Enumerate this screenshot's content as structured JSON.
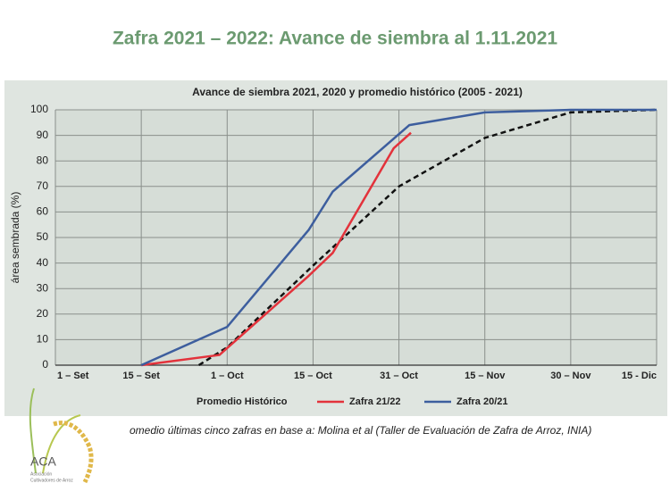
{
  "slide_title": "Zafra 2021 – 2022: Avance de siembra al 1.11.2021",
  "chart_data": {
    "type": "line",
    "title": "Avance de siembra 2021, 2020 y promedio histórico (2005 - 2021)",
    "y_label": "área sembrada (%)",
    "xlim": [
      0,
      7
    ],
    "xticks": [
      {
        "value": 0,
        "label": "1 – Set"
      },
      {
        "value": 1,
        "label": "15 – Set"
      },
      {
        "value": 2,
        "label": "1 – Oct"
      },
      {
        "value": 3,
        "label": "15 – Oct"
      },
      {
        "value": 4,
        "label": "31 – Oct"
      },
      {
        "value": 5,
        "label": "15 – Nov"
      },
      {
        "value": 6,
        "label": "30 – Nov"
      },
      {
        "value": 7,
        "label": "15 - Dic"
      }
    ],
    "ylim": [
      0,
      100
    ],
    "yticks": [
      0,
      10,
      20,
      30,
      40,
      50,
      60,
      70,
      80,
      90,
      100
    ],
    "grid": true,
    "series": [
      {
        "name": "Promedio Histórico",
        "color": "#111111",
        "dashed": true,
        "x": [
          1.67,
          2,
          3,
          4,
          5,
          6,
          7
        ],
        "values": [
          0,
          7,
          39,
          70,
          89,
          99,
          100
        ]
      },
      {
        "name": "Zafra 21/22",
        "color": "#e3323b",
        "dashed": false,
        "x": [
          1,
          1.91,
          2.95,
          3.23,
          3.94,
          4.14
        ],
        "values": [
          0,
          4,
          35,
          44,
          85,
          91
        ]
      },
      {
        "name": "Zafra 20/21",
        "color": "#3d5e9e",
        "dashed": false,
        "x": [
          1,
          2,
          2.95,
          3.23,
          4.12,
          5,
          6,
          7
        ],
        "values": [
          0,
          15,
          53,
          68,
          94,
          99,
          100,
          100
        ]
      }
    ]
  },
  "footnote": "omedio últimas cinco zafras en base a: Molina et al (Taller de Evaluación de Zafra de Arroz, INIA)",
  "logo": {
    "text": "ACA",
    "subtext_1": "Asociación",
    "subtext_2": "Cultivadores de Arroz"
  }
}
